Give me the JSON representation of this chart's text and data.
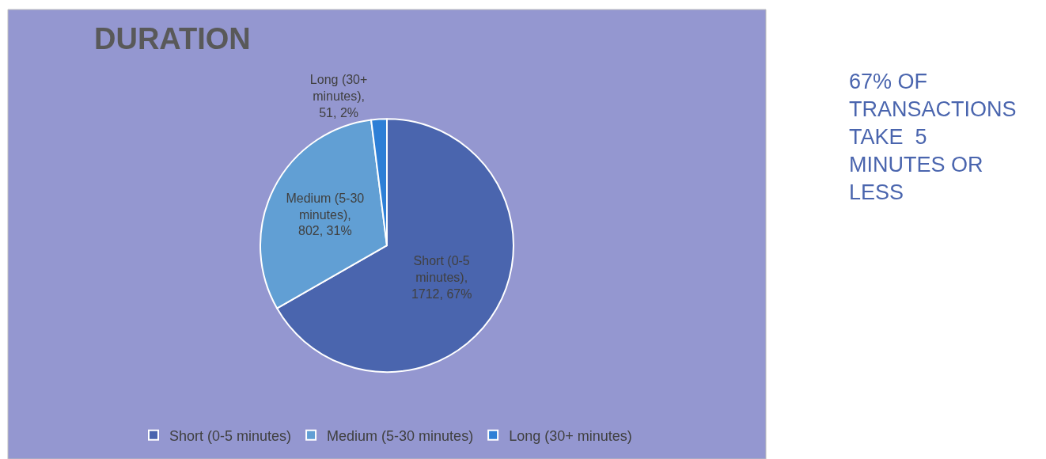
{
  "chart_data": [
    {
      "type": "pie",
      "title": "DURATION",
      "categories": [
        "Short (0-5 minutes)",
        "Medium (5-30 minutes)",
        "Long (30+ minutes)"
      ],
      "values": [
        1712,
        802,
        51
      ],
      "colors": [
        "#4a65ae",
        "#619fd4",
        "#2e7fd6"
      ],
      "value_labels": [
        "Short (0-5 minutes), 1712, 67%",
        "Medium (5-30 minutes), 802, 31%",
        "Long (30+ minutes), 51, 2%"
      ],
      "legend": "bottom"
    },
    {
      "type": "other",
      "title": "67% OF TRANSACTIONS TAKE  5 MINUTES OR LESS"
    }
  ]
}
